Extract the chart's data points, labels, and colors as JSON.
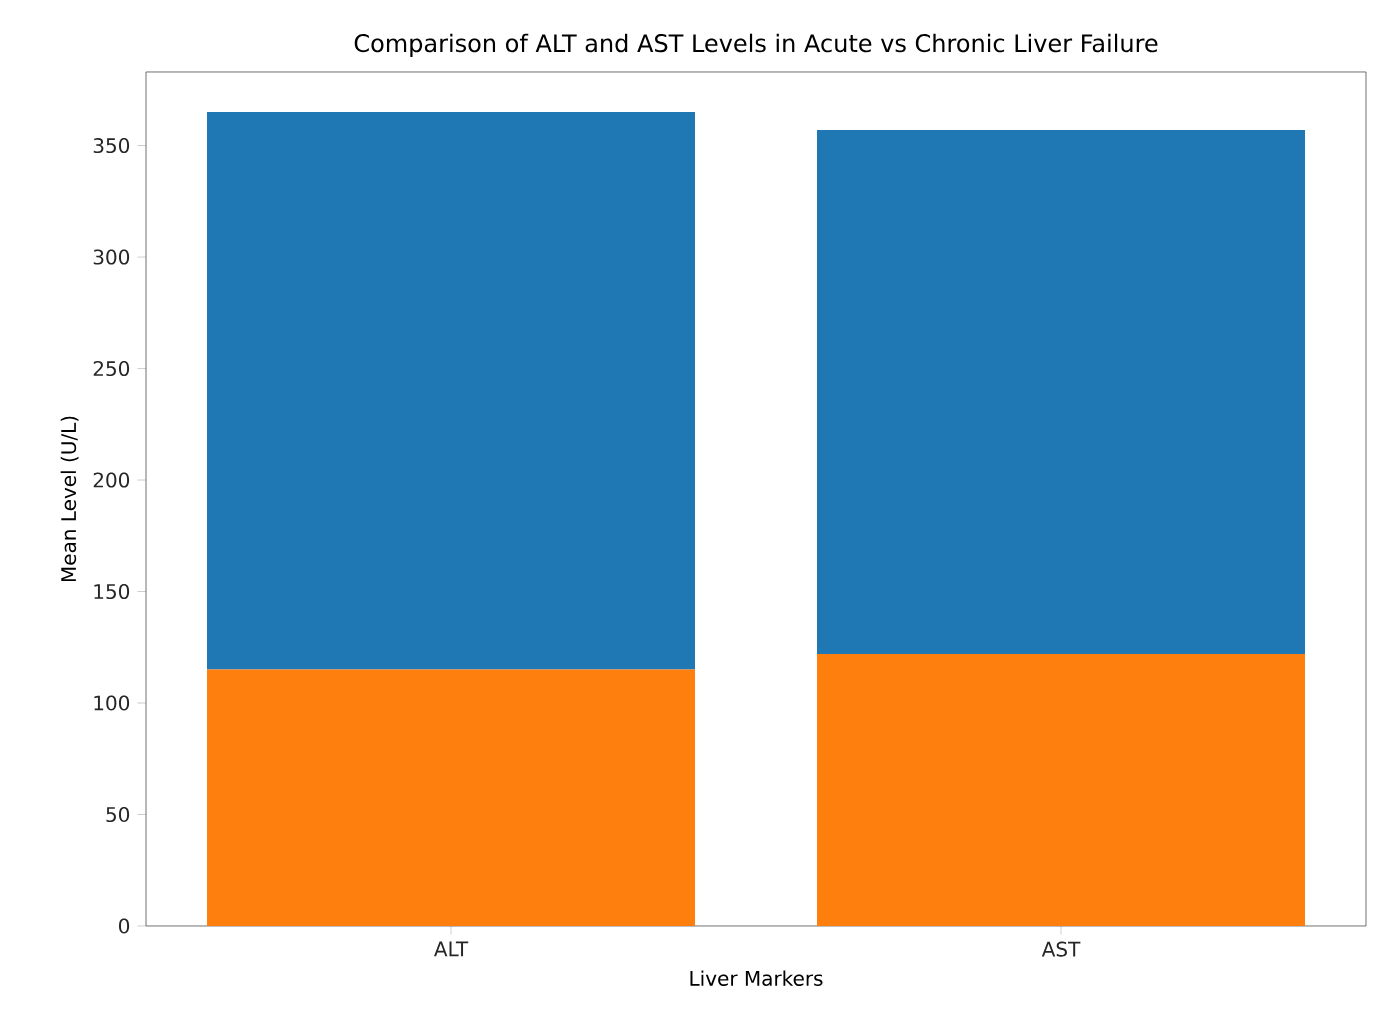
{
  "chart_data": {
    "type": "bar",
    "title": "Comparison of ALT and AST Levels in Acute vs Chronic Liver Failure",
    "xlabel": "Liver Markers",
    "ylabel": "Mean Level (U/L)",
    "categories": [
      "ALT",
      "AST"
    ],
    "stacked": true,
    "series": [
      {
        "color": "#ff7f0e",
        "values": [
          115,
          122
        ]
      },
      {
        "color": "#1f77b4",
        "values": [
          250,
          235
        ]
      }
    ],
    "ylim": [
      0,
      383
    ],
    "yticks": [
      0,
      50,
      100,
      150,
      200,
      250,
      300,
      350
    ],
    "grid": false
  }
}
